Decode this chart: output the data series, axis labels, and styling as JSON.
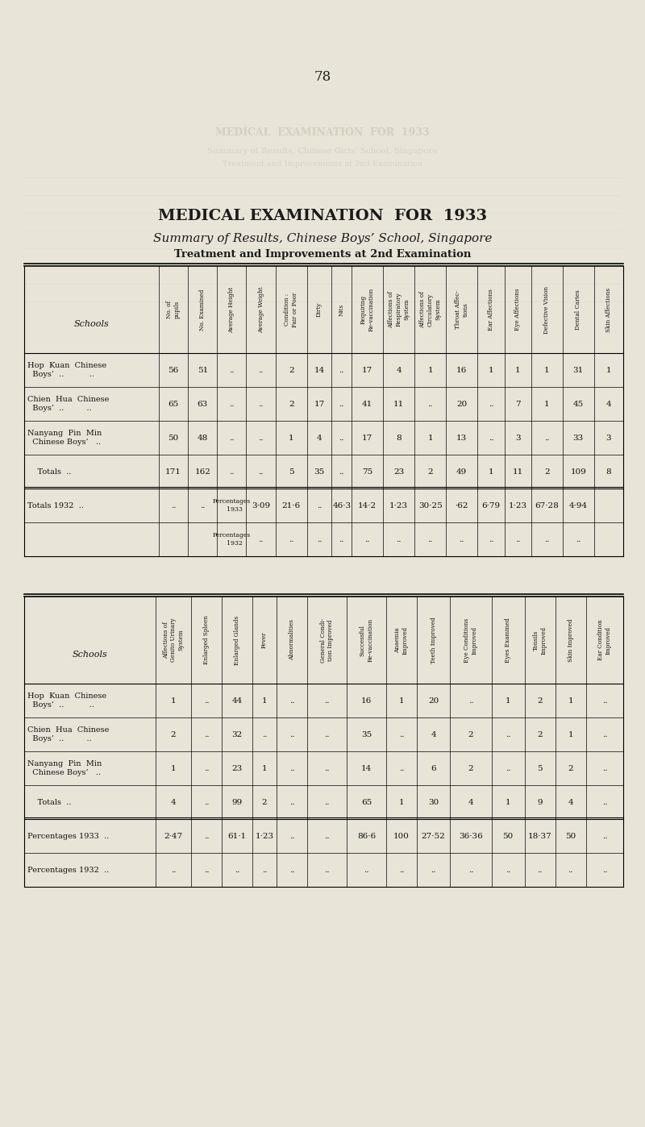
{
  "page_number": "78",
  "title": "MEDICAL EXAMINATION  FOR  1933",
  "subtitle": "Summary of Results, Chinese Boys’ School, Singapore",
  "subtitle2": "Treatment and Improvements at 2nd Examination",
  "bg_color": "#e8e4d8",
  "paper_color": "#e8e4d8",
  "ghost_color": "#c8c2b0",
  "table1": {
    "col_headers": [
      "Schools",
      "No. of\npupils",
      "No. Examined",
      "Average Height",
      "Average Weight",
      "Condition :\nFair or Poor",
      "Dirty",
      "Nits",
      "Requiring\nRe-vaccination",
      "Affections of\nRespiratory\nSystem",
      "Affections of\nCirculatory\nSystem",
      "Throat Affec-\ntions",
      "Ear Affections",
      "Eye Affections",
      "Defective Vision",
      "Dental Caries",
      "Skin Affections"
    ],
    "rows": [
      [
        "Hop  Kuan  Chinese\n  Boys’  ..          ..",
        "56",
        "51",
        "..",
        "..",
        "2",
        "14",
        "..",
        "17",
        "4",
        "1",
        "16",
        "1",
        "1",
        "1",
        "31",
        "1"
      ],
      [
        "Chien  Hua  Chinese\n  Boys’  ..         ..",
        "65",
        "63",
        "..",
        "..",
        "2",
        "17",
        "..",
        "41",
        "11",
        "..",
        "20",
        "..",
        "7",
        "1",
        "45",
        "4"
      ],
      [
        "Nanyang  Pin  Min\n  Chinese Boys’   ..",
        "50",
        "48",
        "..",
        "..",
        "1",
        "4",
        "..",
        "17",
        "8",
        "1",
        "13",
        "..",
        "3",
        "..",
        "33",
        "3"
      ],
      [
        "    Totals  ..",
        "171",
        "162",
        "..",
        "..",
        "5",
        "35",
        "..",
        "75",
        "23",
        "2",
        "49",
        "1",
        "11",
        "2",
        "109",
        "8"
      ],
      [
        "Totals 1932  ..",
        "..",
        "..",
        "Percentages\n   1933",
        "3·09",
        "21·6",
        "..",
        "46·3",
        "14·2",
        "1·23",
        "30·25",
        "·62",
        "6·79",
        "1·23",
        "67·28",
        "4·94"
      ],
      [
        "",
        "",
        "",
        "Percentages\n   1932",
        "..",
        "..",
        "..",
        "..",
        "..",
        "..",
        "..",
        "..",
        "..",
        "..",
        "..",
        ".."
      ]
    ]
  },
  "table2": {
    "col_headers": [
      "Schools",
      "Affections of\nGenito Urinary\nSystem",
      "Enlarged Spleen",
      "Enlarged Glands",
      "Fever",
      "Abnormalities",
      "General Condi-\ntion Improved",
      "Successful\nRe-vaccination",
      "Anaemia\nImproved",
      "Teeth Improved",
      "Eye Conditions\nImproved",
      "Eyes Examined",
      "Tonsils\nImproved",
      "Skin Improved",
      "Ear Condition\nImproved"
    ],
    "rows": [
      [
        "Hop  Kuan  Chinese\n  Boys’  ..          ..",
        "1",
        "..",
        "44",
        "1",
        "..",
        "..",
        "16",
        "1",
        "20",
        "..",
        "1",
        "2",
        "1",
        ".."
      ],
      [
        "Chien  Hua  Chinese\n  Boys’  ..         ..",
        "2",
        "..",
        "32",
        "..",
        "..",
        "..",
        "35",
        "..",
        "4",
        "2",
        "..",
        "2",
        "1",
        ".."
      ],
      [
        "Nanyang  Pin  Min\n  Chinese Boys’   ..",
        "1",
        "..",
        "23",
        "1",
        "..",
        "..",
        "14",
        "..",
        "6",
        "2",
        "..",
        "5",
        "2",
        ".."
      ],
      [
        "    Totals  ..",
        "4",
        "..",
        "99",
        "2",
        "..",
        "..",
        "65",
        "1",
        "30",
        "4",
        "1",
        "9",
        "4",
        ".."
      ],
      [
        "Percentages 1933  ..",
        "2·47",
        "..",
        "61·1",
        "1·23",
        "..",
        "..",
        "86·6",
        "100",
        "27·52",
        "36·36",
        "50",
        "18·37",
        "50",
        ".."
      ],
      [
        "Percentages 1932  ..",
        "..",
        "..",
        "..",
        "..",
        "..",
        "..",
        "..",
        "..",
        "..",
        "..",
        "..",
        "..",
        "..",
        ".."
      ]
    ]
  }
}
